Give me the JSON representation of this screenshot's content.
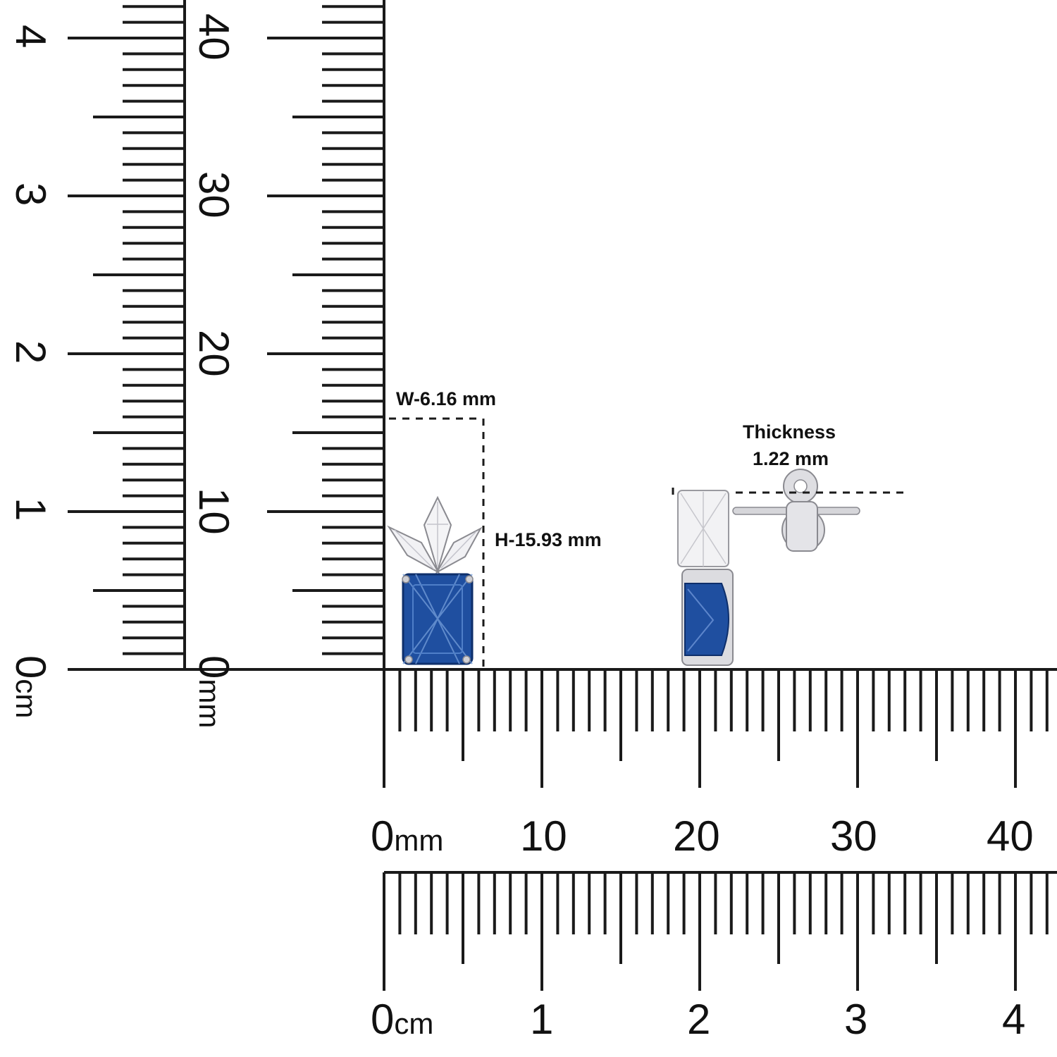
{
  "rulers": {
    "vertical_cm": {
      "labels": [
        "0",
        "1",
        "2",
        "3",
        "4"
      ],
      "unit": "cm"
    },
    "vertical_mm": {
      "labels": [
        "0",
        "10",
        "20",
        "30",
        "40"
      ],
      "unit": "mm"
    },
    "horizontal_mm": {
      "labels": [
        "0",
        "10",
        "20",
        "30",
        "40"
      ],
      "unit": "mm"
    },
    "horizontal_cm": {
      "labels": [
        "0",
        "1",
        "2",
        "3",
        "4"
      ],
      "unit": "cm"
    }
  },
  "measurements": {
    "width": "W-6.16 mm",
    "height": "H-15.93 mm",
    "thickness_title": "Thickness",
    "thickness_value": "1.22 mm"
  },
  "colors": {
    "ruler_ink": "#1a1a1a",
    "sapphire": "#1f4fa0",
    "sapphire_dark": "#0e2f6b",
    "silver": "#d8d8dc"
  }
}
